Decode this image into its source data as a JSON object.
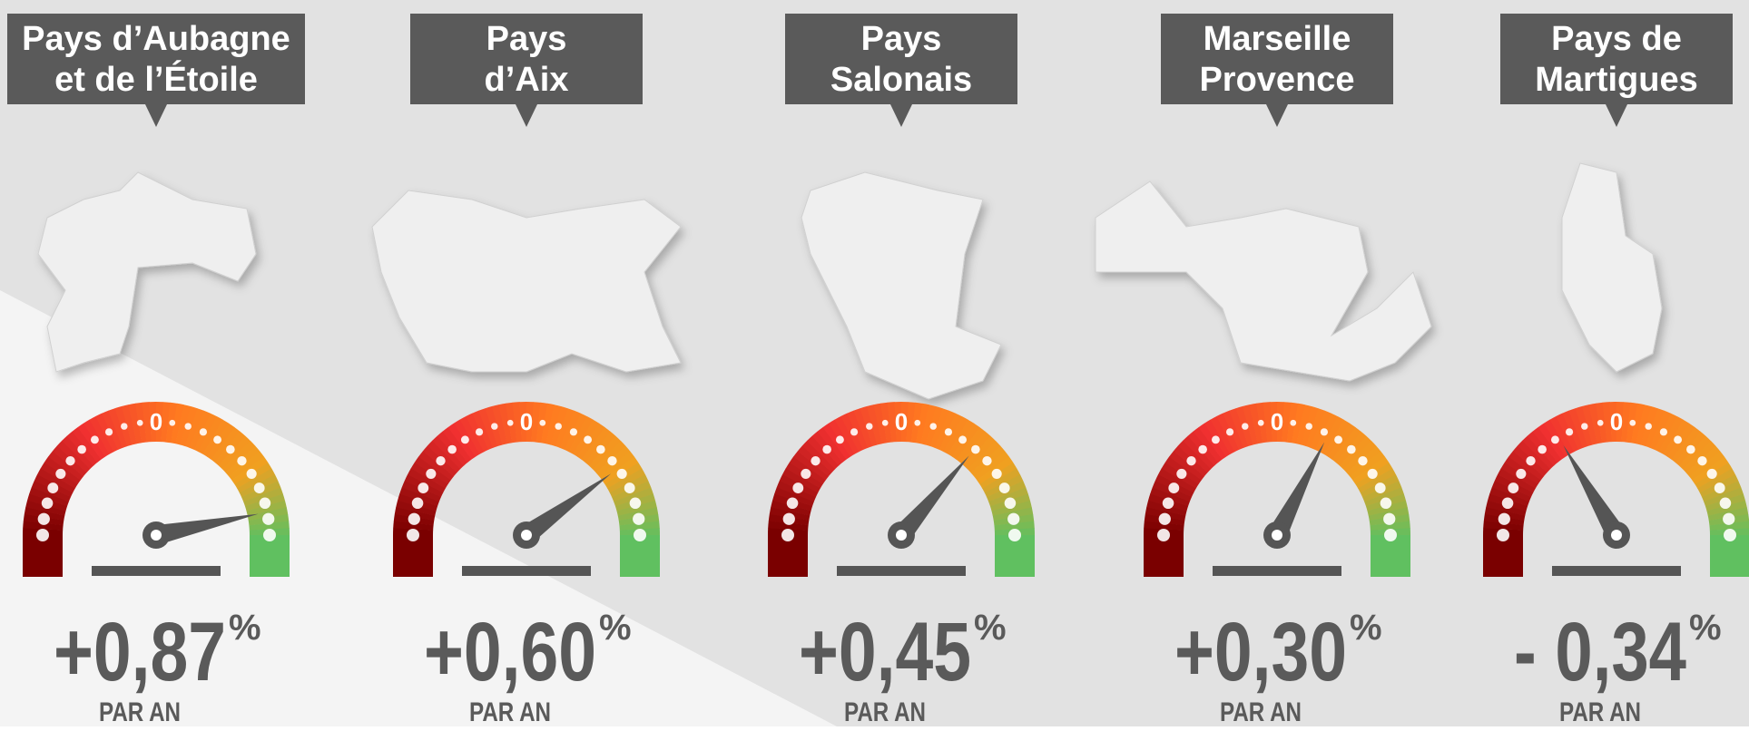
{
  "chart_data": {
    "type": "gauge",
    "categories": [
      [
        "Pays d’Aubagne",
        "et de l’Étoile"
      ],
      [
        "Pays",
        "d’Aix"
      ],
      [
        "Pays",
        "Salonais"
      ],
      [
        "Marseille",
        "Provence"
      ],
      [
        "Pays de",
        "Martigues"
      ]
    ],
    "values": [
      0.87,
      0.6,
      0.45,
      0.3,
      -0.34
    ],
    "value_labels": [
      "+0,87",
      "+0,60",
      "+0,45",
      "+0,30",
      "- 0,34"
    ],
    "unit": "%",
    "period": "PAR AN",
    "ylim": [
      -1,
      1
    ],
    "yticks": [
      0
    ]
  }
}
